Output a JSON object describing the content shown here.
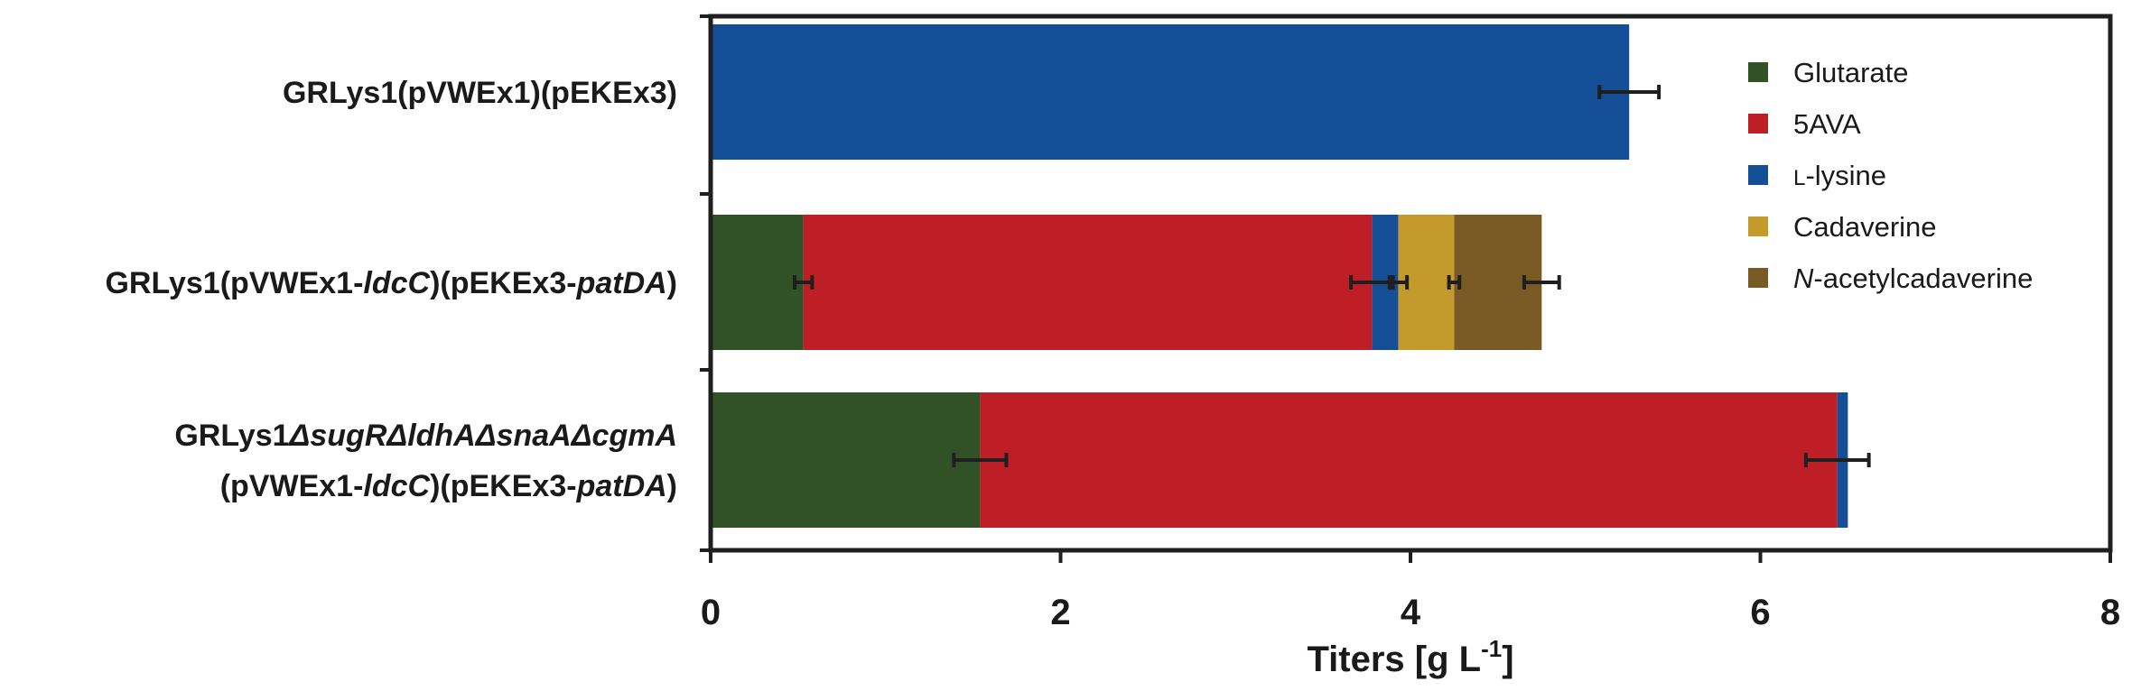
{
  "chart_data": {
    "type": "bar",
    "orientation": "horizontal",
    "stacked": true,
    "categories": [
      {
        "parts": [
          {
            "text": "GRLys1(pVWEx1)(pEKEx3)",
            "italic": false
          }
        ]
      },
      {
        "parts": [
          {
            "text": "GRLys1(pVWEx1-",
            "italic": false
          },
          {
            "text": "ldcC",
            "italic": true
          },
          {
            "text": ")(pEKEx3-",
            "italic": false
          },
          {
            "text": "patDA",
            "italic": true
          },
          {
            "text": ")",
            "italic": false
          }
        ]
      },
      {
        "lines": [
          [
            {
              "text": "GRLys1",
              "italic": false
            },
            {
              "text": "ΔsugRΔldhAΔsnaAΔcgmA",
              "italic": true
            }
          ],
          [
            {
              "text": "(pVWEx1-",
              "italic": false
            },
            {
              "text": "ldcC",
              "italic": true
            },
            {
              "text": ")(pEKEx3-",
              "italic": false
            },
            {
              "text": "patDA",
              "italic": true
            },
            {
              "text": ")",
              "italic": false
            }
          ]
        ]
      }
    ],
    "series": [
      {
        "name": "Glutarate",
        "color": "#315126",
        "values": [
          0,
          0.53,
          1.54
        ],
        "errors": [
          null,
          0.05,
          0.15
        ]
      },
      {
        "name": "5AVA",
        "color": "#be1e26",
        "values": [
          0,
          3.25,
          4.9
        ],
        "errors": [
          null,
          0.12,
          0.18
        ]
      },
      {
        "name": "L-lysine",
        "color": "#134e96",
        "values": [
          5.25,
          0.15,
          0.06
        ],
        "errors": [
          0.17,
          0.05,
          null
        ]
      },
      {
        "name": "Cadaverine",
        "color": "#c49a2d",
        "values": [
          0,
          0.32,
          0
        ],
        "errors": [
          null,
          0.03,
          null
        ]
      },
      {
        "name": "N-acetylcadaverine",
        "color": "#7a5a24",
        "values": [
          0,
          0.5,
          0
        ],
        "errors": [
          null,
          0.1,
          null
        ]
      }
    ],
    "legend": {
      "position": "top-right",
      "entries": [
        {
          "parts": [
            {
              "text": "Glutarate",
              "italic": false,
              "smallcaps": false
            }
          ]
        },
        {
          "parts": [
            {
              "text": "5AVA",
              "italic": false,
              "smallcaps": false
            }
          ]
        },
        {
          "parts": [
            {
              "text": "l",
              "italic": false,
              "smallcaps": true
            },
            {
              "text": "-lysine",
              "italic": false,
              "smallcaps": false
            }
          ]
        },
        {
          "parts": [
            {
              "text": "Cadaverine",
              "italic": false,
              "smallcaps": false
            }
          ]
        },
        {
          "parts": [
            {
              "text": "N",
              "italic": true,
              "smallcaps": false
            },
            {
              "text": "-acetylcadaverine",
              "italic": false,
              "smallcaps": false
            }
          ]
        }
      ]
    },
    "xlabel": {
      "main": "Titers [g L",
      "superscript": "-1",
      "close": "]"
    },
    "xlim": [
      0,
      8
    ],
    "xticks": [
      0,
      2,
      4,
      6,
      8
    ],
    "grid": false
  }
}
